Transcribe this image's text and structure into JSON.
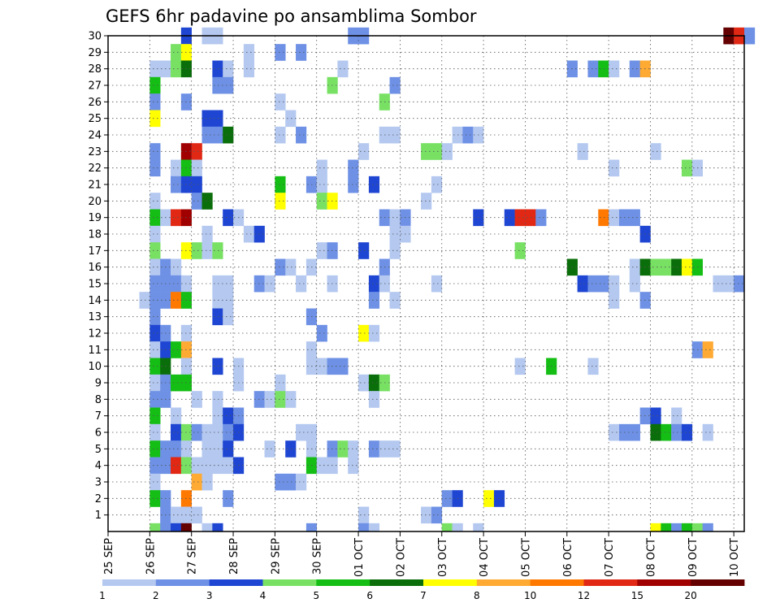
{
  "chart_data": {
    "type": "heatmap",
    "title": "GEFS 6hr padavine po ansamblima Sombor",
    "y_ticks": [
      "1",
      "2",
      "3",
      "4",
      "5",
      "6",
      "7",
      "8",
      "9",
      "10",
      "11",
      "12",
      "13",
      "14",
      "15",
      "16",
      "17",
      "18",
      "19",
      "20",
      "21",
      "22",
      "23",
      "24",
      "25",
      "26",
      "27",
      "28",
      "29",
      "30"
    ],
    "x_ticks": [
      "25 SEP",
      "26 SEP",
      "27 SEP",
      "28 SEP",
      "29 SEP",
      "30 SEP",
      "01 OCT",
      "02 OCT",
      "03 OCT",
      "04 OCT",
      "05 OCT",
      "06 OCT",
      "07 OCT",
      "08 OCT",
      "09 OCT",
      "10 OCT"
    ],
    "x_range": [
      "2025-09-25T00",
      "2025-10-10T06"
    ],
    "y_range": [
      0,
      30
    ],
    "time_step_hours": 6,
    "grid": true,
    "color_scale": {
      "boundaries": [
        "1",
        "2",
        "3",
        "4",
        "5",
        "6",
        "7",
        "8",
        "10",
        "12",
        "15",
        "20"
      ],
      "colors": [
        "#b4c8f0",
        "#6e91e6",
        "#1e46d2",
        "#78e164",
        "#14be14",
        "#0a6e0a",
        "#ffff00",
        "#ffaa32",
        "#ff7800",
        "#e12814",
        "#a00000",
        "#640000"
      ]
    },
    "cells": [
      [
        30,
        "09-26T18",
        2
      ],
      [
        30,
        "09-27T06",
        0
      ],
      [
        30,
        "09-27T12",
        0
      ],
      [
        30,
        "09-30T18",
        1
      ],
      [
        30,
        "10-01T00",
        1
      ],
      [
        30,
        "10-09T18",
        11
      ],
      [
        30,
        "10-10T00",
        9
      ],
      [
        30,
        "10-10T06",
        1
      ],
      [
        29,
        "09-26T12",
        3
      ],
      [
        29,
        "09-26T18",
        6
      ],
      [
        29,
        "09-28T06",
        0
      ],
      [
        29,
        "09-29T00",
        1
      ],
      [
        29,
        "09-29T12",
        1
      ],
      [
        28,
        "09-26T00",
        0
      ],
      [
        28,
        "09-26T06",
        0
      ],
      [
        28,
        "09-26T12",
        3
      ],
      [
        28,
        "09-26T18",
        5
      ],
      [
        28,
        "09-27T12",
        2
      ],
      [
        28,
        "09-27T18",
        0
      ],
      [
        28,
        "09-28T06",
        0
      ],
      [
        28,
        "09-30T12",
        0
      ],
      [
        28,
        "10-06T00",
        1
      ],
      [
        28,
        "10-06T12",
        1
      ],
      [
        28,
        "10-06T18",
        4
      ],
      [
        28,
        "10-07T00",
        0
      ],
      [
        28,
        "10-07T12",
        1
      ],
      [
        28,
        "10-07T18",
        7
      ],
      [
        27,
        "09-26T00",
        4
      ],
      [
        27,
        "09-27T12",
        1
      ],
      [
        27,
        "09-27T18",
        1
      ],
      [
        27,
        "09-30T06",
        3
      ],
      [
        27,
        "10-01T18",
        1
      ],
      [
        26,
        "09-26T00",
        1
      ],
      [
        26,
        "09-26T18",
        1
      ],
      [
        26,
        "09-29T00",
        0
      ],
      [
        26,
        "10-01T12",
        3
      ],
      [
        25,
        "09-26T00",
        6
      ],
      [
        25,
        "09-27T06",
        2
      ],
      [
        25,
        "09-27T12",
        2
      ],
      [
        25,
        "09-29T06",
        0
      ],
      [
        24,
        "09-27T06",
        1
      ],
      [
        24,
        "09-27T12",
        1
      ],
      [
        24,
        "09-27T18",
        5
      ],
      [
        24,
        "09-29T00",
        0
      ],
      [
        24,
        "09-29T12",
        1
      ],
      [
        24,
        "10-01T12",
        0
      ],
      [
        24,
        "10-01T18",
        0
      ],
      [
        24,
        "10-03T06",
        0
      ],
      [
        24,
        "10-03T12",
        1
      ],
      [
        24,
        "10-03T18",
        0
      ],
      [
        23,
        "09-26T00",
        1
      ],
      [
        23,
        "09-26T18",
        10
      ],
      [
        23,
        "09-27T00",
        9
      ],
      [
        23,
        "10-01T00",
        0
      ],
      [
        23,
        "10-02T12",
        3
      ],
      [
        23,
        "10-02T18",
        3
      ],
      [
        23,
        "10-03T00",
        0
      ],
      [
        23,
        "10-06T06",
        0
      ],
      [
        23,
        "10-08T00",
        0
      ],
      [
        22,
        "09-26T00",
        1
      ],
      [
        22,
        "09-26T12",
        0
      ],
      [
        22,
        "09-26T18",
        4
      ],
      [
        22,
        "09-27T00",
        0
      ],
      [
        22,
        "09-30T00",
        0
      ],
      [
        22,
        "09-30T18",
        1
      ],
      [
        22,
        "10-07T00",
        0
      ],
      [
        22,
        "10-08T18",
        3
      ],
      [
        22,
        "10-09T00",
        0
      ],
      [
        21,
        "09-26T12",
        1
      ],
      [
        21,
        "09-26T18",
        2
      ],
      [
        21,
        "09-27T00",
        2
      ],
      [
        21,
        "09-29T00",
        4
      ],
      [
        21,
        "09-29T18",
        1
      ],
      [
        21,
        "09-30T00",
        0
      ],
      [
        21,
        "09-30T18",
        1
      ],
      [
        21,
        "10-01T06",
        2
      ],
      [
        21,
        "10-02T18",
        0
      ],
      [
        20,
        "09-26T00",
        0
      ],
      [
        20,
        "09-27T00",
        1
      ],
      [
        20,
        "09-27T06",
        5
      ],
      [
        20,
        "09-29T00",
        6
      ],
      [
        20,
        "09-30T00",
        3
      ],
      [
        20,
        "09-30T06",
        6
      ],
      [
        20,
        "10-02T12",
        0
      ],
      [
        19,
        "09-26T00",
        4
      ],
      [
        19,
        "09-26T06",
        0
      ],
      [
        19,
        "09-26T12",
        9
      ],
      [
        19,
        "09-26T18",
        10
      ],
      [
        19,
        "09-27T18",
        2
      ],
      [
        19,
        "09-28T00",
        0
      ],
      [
        19,
        "10-01T12",
        1
      ],
      [
        19,
        "10-01T18",
        0
      ],
      [
        19,
        "10-02T00",
        1
      ],
      [
        19,
        "10-03T18",
        2
      ],
      [
        19,
        "10-04T12",
        2
      ],
      [
        19,
        "10-04T18",
        9
      ],
      [
        19,
        "10-05T00",
        9
      ],
      [
        19,
        "10-05T06",
        1
      ],
      [
        19,
        "10-06T18",
        8
      ],
      [
        19,
        "10-07T00",
        0
      ],
      [
        19,
        "10-07T06",
        1
      ],
      [
        19,
        "10-07T12",
        1
      ],
      [
        18,
        "09-26T00",
        0
      ],
      [
        18,
        "09-27T06",
        0
      ],
      [
        18,
        "09-28T06",
        0
      ],
      [
        18,
        "09-28T12",
        2
      ],
      [
        18,
        "10-01T18",
        0
      ],
      [
        18,
        "10-02T00",
        0
      ],
      [
        18,
        "10-07T18",
        2
      ],
      [
        17,
        "09-26T00",
        3
      ],
      [
        17,
        "09-26T18",
        6
      ],
      [
        17,
        "09-27T00",
        3
      ],
      [
        17,
        "09-27T06",
        0
      ],
      [
        17,
        "09-27T12",
        3
      ],
      [
        17,
        "09-30T00",
        0
      ],
      [
        17,
        "09-30T06",
        1
      ],
      [
        17,
        "10-01T00",
        2
      ],
      [
        17,
        "10-01T18",
        0
      ],
      [
        17,
        "10-04T18",
        3
      ],
      [
        16,
        "09-26T00",
        0
      ],
      [
        16,
        "09-26T06",
        1
      ],
      [
        16,
        "09-26T12",
        0
      ],
      [
        16,
        "09-29T00",
        1
      ],
      [
        16,
        "09-29T06",
        0
      ],
      [
        16,
        "09-29T18",
        0
      ],
      [
        16,
        "10-01T12",
        1
      ],
      [
        16,
        "10-06T00",
        5
      ],
      [
        16,
        "10-07T12",
        0
      ],
      [
        16,
        "10-07T18",
        5
      ],
      [
        16,
        "10-08T00",
        3
      ],
      [
        16,
        "10-08T06",
        3
      ],
      [
        16,
        "10-08T12",
        5
      ],
      [
        16,
        "10-08T18",
        6
      ],
      [
        16,
        "10-09T00",
        4
      ],
      [
        15,
        "09-26T00",
        1
      ],
      [
        15,
        "09-26T06",
        1
      ],
      [
        15,
        "09-26T12",
        1
      ],
      [
        15,
        "09-26T18",
        0
      ],
      [
        15,
        "09-27T12",
        0
      ],
      [
        15,
        "09-27T18",
        0
      ],
      [
        15,
        "09-28T12",
        1
      ],
      [
        15,
        "09-28T18",
        0
      ],
      [
        15,
        "09-29T12",
        0
      ],
      [
        15,
        "09-30T06",
        0
      ],
      [
        15,
        "10-01T06",
        2
      ],
      [
        15,
        "10-01T12",
        0
      ],
      [
        15,
        "10-02T18",
        0
      ],
      [
        15,
        "10-06T06",
        2
      ],
      [
        15,
        "10-06T12",
        1
      ],
      [
        15,
        "10-06T18",
        1
      ],
      [
        15,
        "10-07T00",
        0
      ],
      [
        15,
        "10-07T12",
        0
      ],
      [
        15,
        "10-09T12",
        0
      ],
      [
        15,
        "10-09T18",
        0
      ],
      [
        15,
        "10-10T00",
        1
      ],
      [
        14,
        "09-25T18",
        0
      ],
      [
        14,
        "09-26T00",
        1
      ],
      [
        14,
        "09-26T06",
        1
      ],
      [
        14,
        "09-26T12",
        8
      ],
      [
        14,
        "09-26T18",
        4
      ],
      [
        14,
        "09-27T12",
        0
      ],
      [
        14,
        "09-27T18",
        0
      ],
      [
        14,
        "10-01T06",
        1
      ],
      [
        14,
        "10-01T18",
        0
      ],
      [
        14,
        "10-07T00",
        0
      ],
      [
        14,
        "10-07T18",
        1
      ],
      [
        13,
        "09-26T00",
        1
      ],
      [
        13,
        "09-27T12",
        2
      ],
      [
        13,
        "09-27T18",
        0
      ],
      [
        13,
        "09-29T18",
        1
      ],
      [
        12,
        "09-26T00",
        2
      ],
      [
        12,
        "09-26T06",
        1
      ],
      [
        12,
        "09-26T18",
        0
      ],
      [
        12,
        "09-30T00",
        1
      ],
      [
        12,
        "10-01T00",
        6
      ],
      [
        12,
        "10-01T06",
        0
      ],
      [
        11,
        "09-26T00",
        0
      ],
      [
        11,
        "09-26T06",
        2
      ],
      [
        11,
        "09-26T12",
        4
      ],
      [
        11,
        "09-26T18",
        7
      ],
      [
        11,
        "09-29T18",
        0
      ],
      [
        11,
        "10-09T00",
        1
      ],
      [
        11,
        "10-09T06",
        7
      ],
      [
        10,
        "09-26T00",
        4
      ],
      [
        10,
        "09-26T06",
        5
      ],
      [
        10,
        "09-26T18",
        0
      ],
      [
        10,
        "09-27T12",
        2
      ],
      [
        10,
        "09-28T00",
        0
      ],
      [
        10,
        "09-29T18",
        0
      ],
      [
        10,
        "09-30T00",
        0
      ],
      [
        10,
        "09-30T06",
        1
      ],
      [
        10,
        "09-30T12",
        1
      ],
      [
        10,
        "10-04T18",
        0
      ],
      [
        10,
        "10-05T12",
        4
      ],
      [
        10,
        "10-06T12",
        0
      ],
      [
        9,
        "09-26T00",
        0
      ],
      [
        9,
        "09-26T06",
        1
      ],
      [
        9,
        "09-26T12",
        4
      ],
      [
        9,
        "09-26T18",
        4
      ],
      [
        9,
        "09-28T00",
        0
      ],
      [
        9,
        "09-29T00",
        0
      ],
      [
        9,
        "10-01T00",
        0
      ],
      [
        9,
        "10-01T06",
        5
      ],
      [
        9,
        "10-01T12",
        3
      ],
      [
        8,
        "09-26T00",
        1
      ],
      [
        8,
        "09-26T06",
        1
      ],
      [
        8,
        "09-27T00",
        0
      ],
      [
        8,
        "09-27T12",
        0
      ],
      [
        8,
        "09-28T12",
        1
      ],
      [
        8,
        "09-28T18",
        0
      ],
      [
        8,
        "09-29T00",
        3
      ],
      [
        8,
        "09-29T06",
        0
      ],
      [
        8,
        "10-01T06",
        0
      ],
      [
        7,
        "09-26T00",
        4
      ],
      [
        7,
        "09-26T12",
        0
      ],
      [
        7,
        "09-27T12",
        0
      ],
      [
        7,
        "09-27T18",
        2
      ],
      [
        7,
        "09-28T00",
        1
      ],
      [
        7,
        "10-07T18",
        1
      ],
      [
        7,
        "10-08T00",
        2
      ],
      [
        7,
        "10-08T12",
        0
      ],
      [
        6,
        "09-26T00",
        0
      ],
      [
        6,
        "09-26T12",
        2
      ],
      [
        6,
        "09-26T18",
        3
      ],
      [
        6,
        "09-27T00",
        1
      ],
      [
        6,
        "09-27T06",
        0
      ],
      [
        6,
        "09-27T12",
        0
      ],
      [
        6,
        "09-27T18",
        1
      ],
      [
        6,
        "09-28T00",
        2
      ],
      [
        6,
        "09-29T12",
        0
      ],
      [
        6,
        "09-29T18",
        0
      ],
      [
        6,
        "10-07T00",
        0
      ],
      [
        6,
        "10-07T06",
        1
      ],
      [
        6,
        "10-07T12",
        1
      ],
      [
        6,
        "10-08T00",
        5
      ],
      [
        6,
        "10-08T06",
        4
      ],
      [
        6,
        "10-08T12",
        1
      ],
      [
        6,
        "10-08T18",
        2
      ],
      [
        6,
        "10-09T06",
        0
      ],
      [
        5,
        "09-26T00",
        4
      ],
      [
        5,
        "09-26T06",
        1
      ],
      [
        5,
        "09-26T12",
        1
      ],
      [
        5,
        "09-26T18",
        0
      ],
      [
        5,
        "09-27T06",
        0
      ],
      [
        5,
        "09-27T12",
        0
      ],
      [
        5,
        "09-27T18",
        2
      ],
      [
        5,
        "09-28T18",
        0
      ],
      [
        5,
        "09-29T06",
        2
      ],
      [
        5,
        "09-29T18",
        0
      ],
      [
        5,
        "09-30T06",
        1
      ],
      [
        5,
        "09-30T12",
        3
      ],
      [
        5,
        "09-30T18",
        0
      ],
      [
        5,
        "10-01T06",
        1
      ],
      [
        5,
        "10-01T12",
        0
      ],
      [
        5,
        "10-01T18",
        0
      ],
      [
        4,
        "09-26T00",
        1
      ],
      [
        4,
        "09-26T06",
        1
      ],
      [
        4,
        "09-26T12",
        9
      ],
      [
        4,
        "09-26T18",
        3
      ],
      [
        4,
        "09-27T00",
        0
      ],
      [
        4,
        "09-27T06",
        0
      ],
      [
        4,
        "09-27T12",
        0
      ],
      [
        4,
        "09-27T18",
        0
      ],
      [
        4,
        "09-28T00",
        2
      ],
      [
        4,
        "09-29T18",
        4
      ],
      [
        4,
        "09-30T00",
        0
      ],
      [
        4,
        "09-30T06",
        0
      ],
      [
        4,
        "09-30T18",
        0
      ],
      [
        3,
        "09-26T00",
        0
      ],
      [
        3,
        "09-27T00",
        7
      ],
      [
        3,
        "09-27T06",
        0
      ],
      [
        3,
        "09-29T00",
        1
      ],
      [
        3,
        "09-29T06",
        1
      ],
      [
        3,
        "09-29T12",
        0
      ],
      [
        2,
        "09-26T00",
        4
      ],
      [
        2,
        "09-26T06",
        1
      ],
      [
        2,
        "09-26T18",
        8
      ],
      [
        2,
        "09-27T18",
        1
      ],
      [
        2,
        "10-03T00",
        1
      ],
      [
        2,
        "10-03T06",
        2
      ],
      [
        2,
        "10-04T00",
        6
      ],
      [
        2,
        "10-04T06",
        2
      ],
      [
        1,
        "09-26T06",
        1
      ],
      [
        1,
        "09-26T12",
        0
      ],
      [
        1,
        "09-26T18",
        0
      ],
      [
        1,
        "09-27T00",
        0
      ],
      [
        1,
        "10-01T00",
        0
      ],
      [
        1,
        "10-02T12",
        0
      ],
      [
        1,
        "10-02T18",
        1
      ],
      [
        0,
        "09-26T00",
        3
      ],
      [
        0,
        "09-26T06",
        1
      ],
      [
        0,
        "09-26T12",
        2
      ],
      [
        0,
        "09-26T18",
        11
      ],
      [
        0,
        "09-27T06",
        0
      ],
      [
        0,
        "09-27T12",
        2
      ],
      [
        0,
        "09-29T18",
        1
      ],
      [
        0,
        "10-01T00",
        1
      ],
      [
        0,
        "10-01T06",
        0
      ],
      [
        0,
        "10-03T00",
        3
      ],
      [
        0,
        "10-03T06",
        0
      ],
      [
        0,
        "10-03T18",
        0
      ],
      [
        0,
        "10-08T00",
        6
      ],
      [
        0,
        "10-08T06",
        4
      ],
      [
        0,
        "10-08T12",
        1
      ],
      [
        0,
        "10-08T18",
        4
      ],
      [
        0,
        "10-09T00",
        3
      ],
      [
        0,
        "10-09T06",
        1
      ]
    ]
  }
}
